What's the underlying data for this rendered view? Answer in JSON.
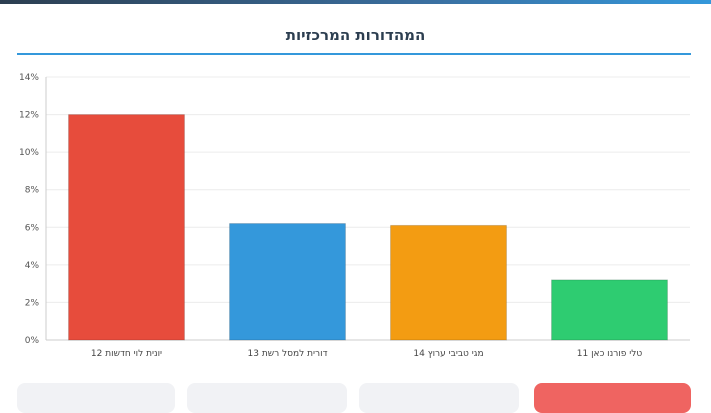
{
  "title": "המהדורות המרכזיות",
  "chart_data": {
    "type": "bar",
    "categories": [
      "יונית לוי חדשות 12",
      "דורית למסל רשת 13",
      "מגי טביבי ערוץ 14",
      "טלי פורנו כאן 11"
    ],
    "values": [
      12.0,
      6.2,
      6.1,
      3.2
    ],
    "colors": [
      "#e74c3c",
      "#3498db",
      "#f39c12",
      "#2ecc71"
    ],
    "yticks": [
      "0%",
      "2%",
      "4%",
      "6%",
      "8%",
      "10%",
      "12%",
      "14%"
    ],
    "ylim": [
      0,
      14
    ],
    "grid": true
  }
}
